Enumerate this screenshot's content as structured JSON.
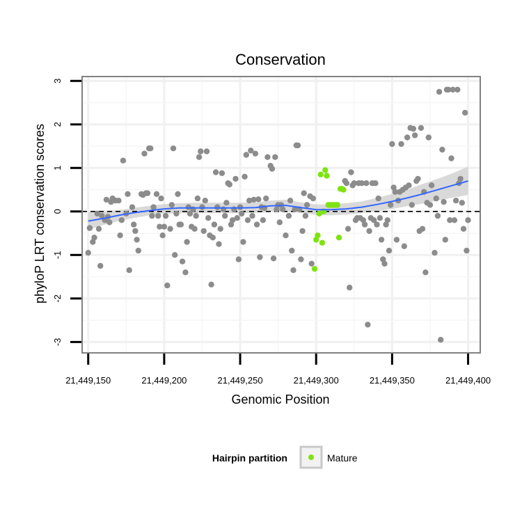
{
  "chart_data": {
    "type": "scatter",
    "title": "Conservation",
    "xlabel": "Genomic Position",
    "ylabel": "phyloP LRT conservation scores",
    "xlim": [
      21449146,
      21449408
    ],
    "ylim": [
      -3.25,
      3.1
    ],
    "x_ticks": [
      21449150,
      21449200,
      21449250,
      21449300,
      21449350,
      21449400
    ],
    "x_tick_labels": [
      "21,449,150",
      "21,449,200",
      "21,449,250",
      "21,449,300",
      "21,449,350",
      "21,449,400"
    ],
    "y_ticks": [
      -3,
      -2,
      -1,
      0,
      1,
      2,
      3
    ],
    "y_tick_labels": [
      "-3",
      "-2",
      "-1",
      "0",
      "1",
      "2",
      "3"
    ],
    "reference_line": 0,
    "legend": {
      "title": "Hairpin partition",
      "position": "bottom",
      "entries": [
        {
          "label": "Mature",
          "color": "#7fe312"
        }
      ]
    },
    "colors": {
      "other": "#8c8c8c",
      "mature": "#7fe312",
      "smooth": "#3366ff",
      "ribbon": "#cccccc"
    },
    "series": [
      {
        "name": "Other",
        "points": [
          [
            21449150,
            -0.95
          ],
          [
            21449151,
            -0.38
          ],
          [
            21449153,
            -0.7
          ],
          [
            21449154,
            -0.6
          ],
          [
            21449156,
            -0.05
          ],
          [
            21449157,
            -0.4
          ],
          [
            21449158,
            -1.25
          ],
          [
            21449159,
            -0.1
          ],
          [
            21449161,
            -0.2
          ],
          [
            21449162,
            0.27
          ],
          [
            21449163,
            -0.12
          ],
          [
            21449164,
            -0.25
          ],
          [
            21449165,
            0.22
          ],
          [
            21449166,
            0.3
          ],
          [
            21449168,
            0.25
          ],
          [
            21449170,
            0.25
          ],
          [
            21449171,
            -0.55
          ],
          [
            21449172,
            -0.2
          ],
          [
            21449173,
            1.17
          ],
          [
            21449175,
            -0.05
          ],
          [
            21449176,
            0.4
          ],
          [
            21449177,
            -1.35
          ],
          [
            21449179,
            0.1
          ],
          [
            21449180,
            -0.3
          ],
          [
            21449181,
            -0.45
          ],
          [
            21449182,
            -0.65
          ],
          [
            21449183,
            -0.9
          ],
          [
            21449185,
            0.4
          ],
          [
            21449186,
            0.38
          ],
          [
            21449187,
            1.33
          ],
          [
            21449188,
            0.42
          ],
          [
            21449189,
            0.42
          ],
          [
            21449190,
            1.45
          ],
          [
            21449191,
            1.45
          ],
          [
            21449192,
            -0.1
          ],
          [
            21449193,
            0.1
          ],
          [
            21449195,
            0.4
          ],
          [
            21449196,
            -0.1
          ],
          [
            21449197,
            -0.35
          ],
          [
            21449198,
            0.3
          ],
          [
            21449199,
            -0.55
          ],
          [
            21449200,
            -0.35
          ],
          [
            21449201,
            -0.1
          ],
          [
            21449202,
            -1.7
          ],
          [
            21449204,
            -0.4
          ],
          [
            21449205,
            0.15
          ],
          [
            21449206,
            1.45
          ],
          [
            21449207,
            -1.0
          ],
          [
            21449208,
            -0.05
          ],
          [
            21449209,
            0.4
          ],
          [
            21449210,
            -0.3
          ],
          [
            21449211,
            -0.3
          ],
          [
            21449212,
            -1.15
          ],
          [
            21449214,
            -1.4
          ],
          [
            21449215,
            -0.7
          ],
          [
            21449216,
            0.1
          ],
          [
            21449217,
            -0.05
          ],
          [
            21449218,
            -0.35
          ],
          [
            21449219,
            0.05
          ],
          [
            21449220,
            -0.4
          ],
          [
            21449221,
            -0.1
          ],
          [
            21449222,
            0.3
          ],
          [
            21449223,
            1.25
          ],
          [
            21449224,
            1.38
          ],
          [
            21449225,
            0.1
          ],
          [
            21449226,
            -0.45
          ],
          [
            21449227,
            0.25
          ],
          [
            21449228,
            1.38
          ],
          [
            21449229,
            -0.15
          ],
          [
            21449230,
            -0.55
          ],
          [
            21449231,
            -1.68
          ],
          [
            21449232,
            -0.6
          ],
          [
            21449233,
            -0.3
          ],
          [
            21449234,
            0.9
          ],
          [
            21449235,
            0.1
          ],
          [
            21449236,
            -0.75
          ],
          [
            21449237,
            -0.4
          ],
          [
            21449238,
            0.88
          ],
          [
            21449239,
            0.05
          ],
          [
            21449240,
            -0.1
          ],
          [
            21449241,
            0.2
          ],
          [
            21449242,
            0.65
          ],
          [
            21449243,
            0.62
          ],
          [
            21449244,
            -0.3
          ],
          [
            21449245,
            -0.2
          ],
          [
            21449246,
            0.05
          ],
          [
            21449247,
            0.75
          ],
          [
            21449248,
            -0.15
          ],
          [
            21449249,
            -1.1
          ],
          [
            21449250,
            0.1
          ],
          [
            21449251,
            -0.05
          ],
          [
            21449252,
            -0.7
          ],
          [
            21449253,
            0.8
          ],
          [
            21449254,
            1.3
          ],
          [
            21449255,
            -0.2
          ],
          [
            21449256,
            0.25
          ],
          [
            21449257,
            1.4
          ],
          [
            21449258,
            -0.1
          ],
          [
            21449259,
            0.27
          ],
          [
            21449260,
            1.33
          ],
          [
            21449261,
            -0.3
          ],
          [
            21449262,
            0.28
          ],
          [
            21449263,
            -1.05
          ],
          [
            21449264,
            0.1
          ],
          [
            21449265,
            -0.2
          ],
          [
            21449266,
            0.08
          ],
          [
            21449267,
            0.3
          ],
          [
            21449268,
            1.25
          ],
          [
            21449270,
            1.05
          ],
          [
            21449271,
            0.98
          ],
          [
            21449272,
            -1.08
          ],
          [
            21449273,
            1.25
          ],
          [
            21449274,
            0.05
          ],
          [
            21449275,
            0.15
          ],
          [
            21449276,
            -0.25
          ],
          [
            21449277,
            0.15
          ],
          [
            21449278,
            0.05
          ],
          [
            21449280,
            -0.55
          ],
          [
            21449282,
            -0.1
          ],
          [
            21449283,
            0.25
          ],
          [
            21449284,
            -0.9
          ],
          [
            21449285,
            -1.35
          ],
          [
            21449286,
            0.05
          ],
          [
            21449287,
            1.52
          ],
          [
            21449288,
            1.52
          ],
          [
            21449289,
            0.05
          ],
          [
            21449290,
            -1.1
          ],
          [
            21449291,
            -0.45
          ],
          [
            21449292,
            0.42
          ],
          [
            21449293,
            -0.1
          ],
          [
            21449294,
            0.15
          ],
          [
            21449296,
            0.35
          ],
          [
            21449297,
            -1.2
          ],
          [
            21449298,
            0.3
          ],
          [
            21449319,
            0.7
          ],
          [
            21449320,
            0.65
          ],
          [
            21449321,
            -0.4
          ],
          [
            21449322,
            -1.75
          ],
          [
            21449323,
            0.9
          ],
          [
            21449324,
            0.6
          ],
          [
            21449325,
            0.65
          ],
          [
            21449326,
            -0.2
          ],
          [
            21449327,
            -0.15
          ],
          [
            21449328,
            0.65
          ],
          [
            21449329,
            -0.15
          ],
          [
            21449330,
            0.65
          ],
          [
            21449331,
            -0.2
          ],
          [
            21449332,
            -0.3
          ],
          [
            21449333,
            0.65
          ],
          [
            21449334,
            -2.6
          ],
          [
            21449335,
            -0.45
          ],
          [
            21449336,
            -0.15
          ],
          [
            21449337,
            0.65
          ],
          [
            21449338,
            -0.2
          ],
          [
            21449339,
            0.65
          ],
          [
            21449340,
            -0.3
          ],
          [
            21449341,
            0.3
          ],
          [
            21449342,
            -0.15
          ],
          [
            21449343,
            -0.65
          ],
          [
            21449344,
            -1.1
          ],
          [
            21449345,
            -1.2
          ],
          [
            21449346,
            -0.3
          ],
          [
            21449347,
            -0.2
          ],
          [
            21449348,
            -0.9
          ],
          [
            21449349,
            0.15
          ],
          [
            21449350,
            1.55
          ],
          [
            21449351,
            0.55
          ],
          [
            21449352,
            0.45
          ],
          [
            21449353,
            -0.65
          ],
          [
            21449354,
            0.25
          ],
          [
            21449355,
            0.45
          ],
          [
            21449356,
            1.55
          ],
          [
            21449357,
            0.5
          ],
          [
            21449358,
            -0.8
          ],
          [
            21449359,
            0.55
          ],
          [
            21449360,
            1.7
          ],
          [
            21449361,
            0.6
          ],
          [
            21449362,
            1.92
          ],
          [
            21449363,
            0.15
          ],
          [
            21449364,
            1.9
          ],
          [
            21449365,
            1.75
          ],
          [
            21449366,
            0.7
          ],
          [
            21449367,
            0.75
          ],
          [
            21449368,
            -0.45
          ],
          [
            21449369,
            1.92
          ],
          [
            21449370,
            -0.4
          ],
          [
            21449371,
            0.45
          ],
          [
            21449372,
            -1.4
          ],
          [
            21449373,
            0.2
          ],
          [
            21449374,
            1.7
          ],
          [
            21449375,
            0.15
          ],
          [
            21449376,
            0.6
          ],
          [
            21449378,
            -0.95
          ],
          [
            21449379,
            0.3
          ],
          [
            21449380,
            -0.1
          ],
          [
            21449381,
            2.75
          ],
          [
            21449382,
            -2.95
          ],
          [
            21449383,
            1.42
          ],
          [
            21449384,
            0.22
          ],
          [
            21449385,
            -0.65
          ],
          [
            21449386,
            2.8
          ],
          [
            21449387,
            2.8
          ],
          [
            21449388,
            -0.2
          ],
          [
            21449389,
            1.22
          ],
          [
            21449390,
            2.8
          ],
          [
            21449391,
            -0.2
          ],
          [
            21449392,
            0.25
          ],
          [
            21449393,
            2.8
          ],
          [
            21449394,
            0.65
          ],
          [
            21449395,
            0.75
          ],
          [
            21449396,
            0.2
          ],
          [
            21449397,
            -0.4
          ],
          [
            21449398,
            2.27
          ],
          [
            21449399,
            -0.9
          ],
          [
            21449400,
            -0.2
          ]
        ]
      },
      {
        "name": "Mature",
        "points": [
          [
            21449299,
            -1.32
          ],
          [
            21449300,
            -0.65
          ],
          [
            21449301,
            -0.55
          ],
          [
            21449302,
            -0.05
          ],
          [
            21449303,
            0.85
          ],
          [
            21449304,
            -0.72
          ],
          [
            21449305,
            0.0
          ],
          [
            21449306,
            0.95
          ],
          [
            21449307,
            0.82
          ],
          [
            21449308,
            0.15
          ],
          [
            21449309,
            0.15
          ],
          [
            21449310,
            0.15
          ],
          [
            21449311,
            0.15
          ],
          [
            21449312,
            0.15
          ],
          [
            21449313,
            0.15
          ],
          [
            21449314,
            0.15
          ],
          [
            21449315,
            -0.6
          ],
          [
            21449316,
            0.52
          ],
          [
            21449317,
            0.52
          ],
          [
            21449318,
            0.5
          ]
        ]
      }
    ],
    "smooth": {
      "x": [
        21449150,
        21449160,
        21449170,
        21449180,
        21449190,
        21449200,
        21449210,
        21449220,
        21449230,
        21449240,
        21449250,
        21449260,
        21449270,
        21449280,
        21449290,
        21449300,
        21449310,
        21449320,
        21449330,
        21449340,
        21449350,
        21449360,
        21449370,
        21449380,
        21449390,
        21449400
      ],
      "y": [
        -0.22,
        -0.16,
        -0.09,
        -0.03,
        0.02,
        0.06,
        0.08,
        0.08,
        0.08,
        0.08,
        0.08,
        0.09,
        0.13,
        0.14,
        0.09,
        0.04,
        0.04,
        0.06,
        0.1,
        0.16,
        0.23,
        0.31,
        0.4,
        0.5,
        0.6,
        0.7
      ],
      "lower": [
        -0.42,
        -0.31,
        -0.22,
        -0.15,
        -0.09,
        -0.05,
        -0.04,
        -0.04,
        -0.04,
        -0.04,
        -0.04,
        -0.03,
        0.0,
        0.01,
        -0.03,
        -0.08,
        -0.09,
        -0.07,
        -0.04,
        0.01,
        0.06,
        0.12,
        0.18,
        0.25,
        0.32,
        0.38
      ],
      "upper": [
        -0.02,
        0.0,
        0.03,
        0.08,
        0.13,
        0.17,
        0.19,
        0.2,
        0.2,
        0.2,
        0.2,
        0.21,
        0.25,
        0.27,
        0.21,
        0.16,
        0.16,
        0.19,
        0.23,
        0.31,
        0.4,
        0.5,
        0.63,
        0.75,
        0.88,
        1.03
      ]
    }
  }
}
